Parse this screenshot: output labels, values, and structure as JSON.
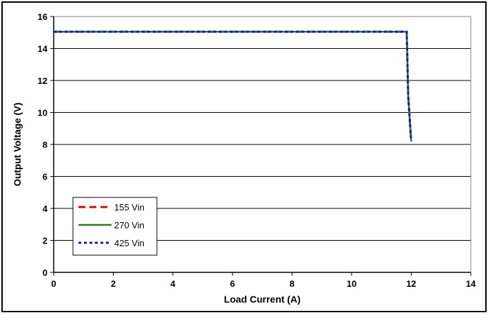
{
  "chart_data": {
    "type": "line",
    "title": "",
    "xlabel": "Load Current (A)",
    "ylabel": "Output Voltage (V)",
    "xlim": [
      0,
      14
    ],
    "ylim": [
      0,
      16
    ],
    "xticks": [
      0,
      2,
      4,
      6,
      8,
      10,
      12,
      14
    ],
    "yticks": [
      0,
      2,
      4,
      6,
      8,
      10,
      12,
      14,
      16
    ],
    "grid": "horizontal",
    "legend_position": "bottom-left",
    "series": [
      {
        "name": "155 Vin",
        "color": "#e00000",
        "dash": "dashed",
        "x": [
          0,
          11.85,
          11.9,
          12.0
        ],
        "y": [
          15.05,
          15.05,
          11.0,
          8.2
        ]
      },
      {
        "name": "270 Vin",
        "color": "#1f7a1f",
        "dash": "solid",
        "x": [
          0,
          11.85,
          11.9,
          12.0
        ],
        "y": [
          15.05,
          15.05,
          11.0,
          8.2
        ]
      },
      {
        "name": "425 Vin",
        "color": "#1010d0",
        "dash": "dotted",
        "x": [
          0,
          11.85,
          11.9,
          12.0
        ],
        "y": [
          15.05,
          15.05,
          11.0,
          8.2
        ]
      }
    ]
  }
}
